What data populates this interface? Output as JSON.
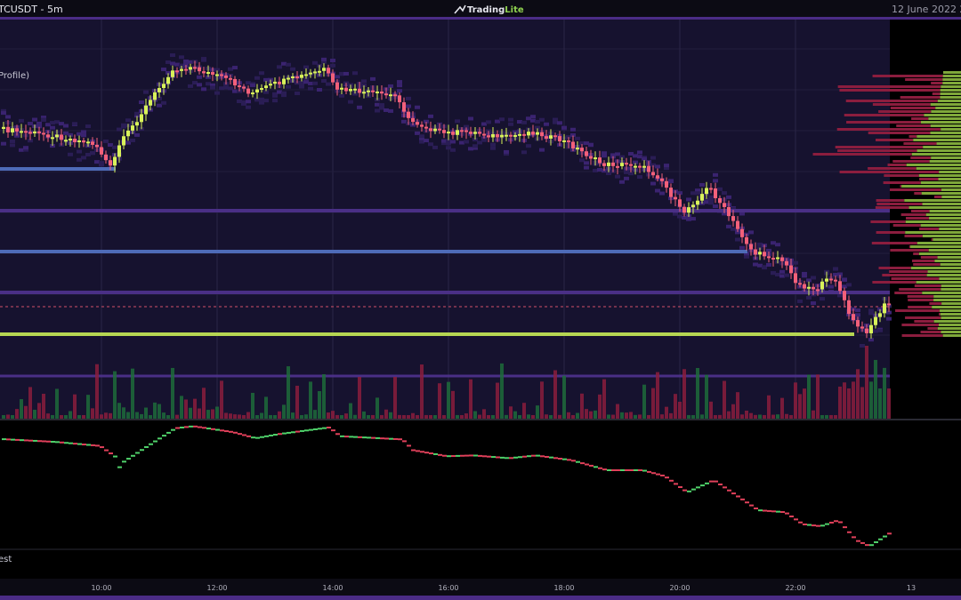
{
  "header": {
    "symbol": "TCUSDT - 5m",
    "brand_main": "Trading",
    "brand_accent": "Lite",
    "date": "12 June 2022 2"
  },
  "main_pane": {
    "indicator_label": "Profile)"
  },
  "lower_pane": {
    "label": "est"
  },
  "x_axis": {
    "ticks": [
      "10:00",
      "12:00",
      "14:00",
      "16:00",
      "18:00",
      "20:00",
      "22:00",
      "13"
    ]
  }
}
